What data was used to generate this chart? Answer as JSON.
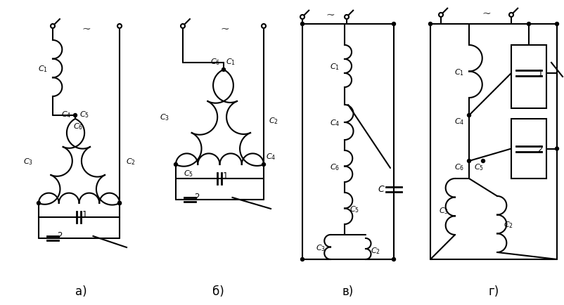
{
  "bg_color": "#ffffff",
  "lc": "#000000",
  "lw": 1.5,
  "figsize": [
    8.03,
    4.35
  ],
  "dpi": 100,
  "label_a": "а)",
  "label_b": "б)",
  "label_v": "в)",
  "label_g": "г)"
}
